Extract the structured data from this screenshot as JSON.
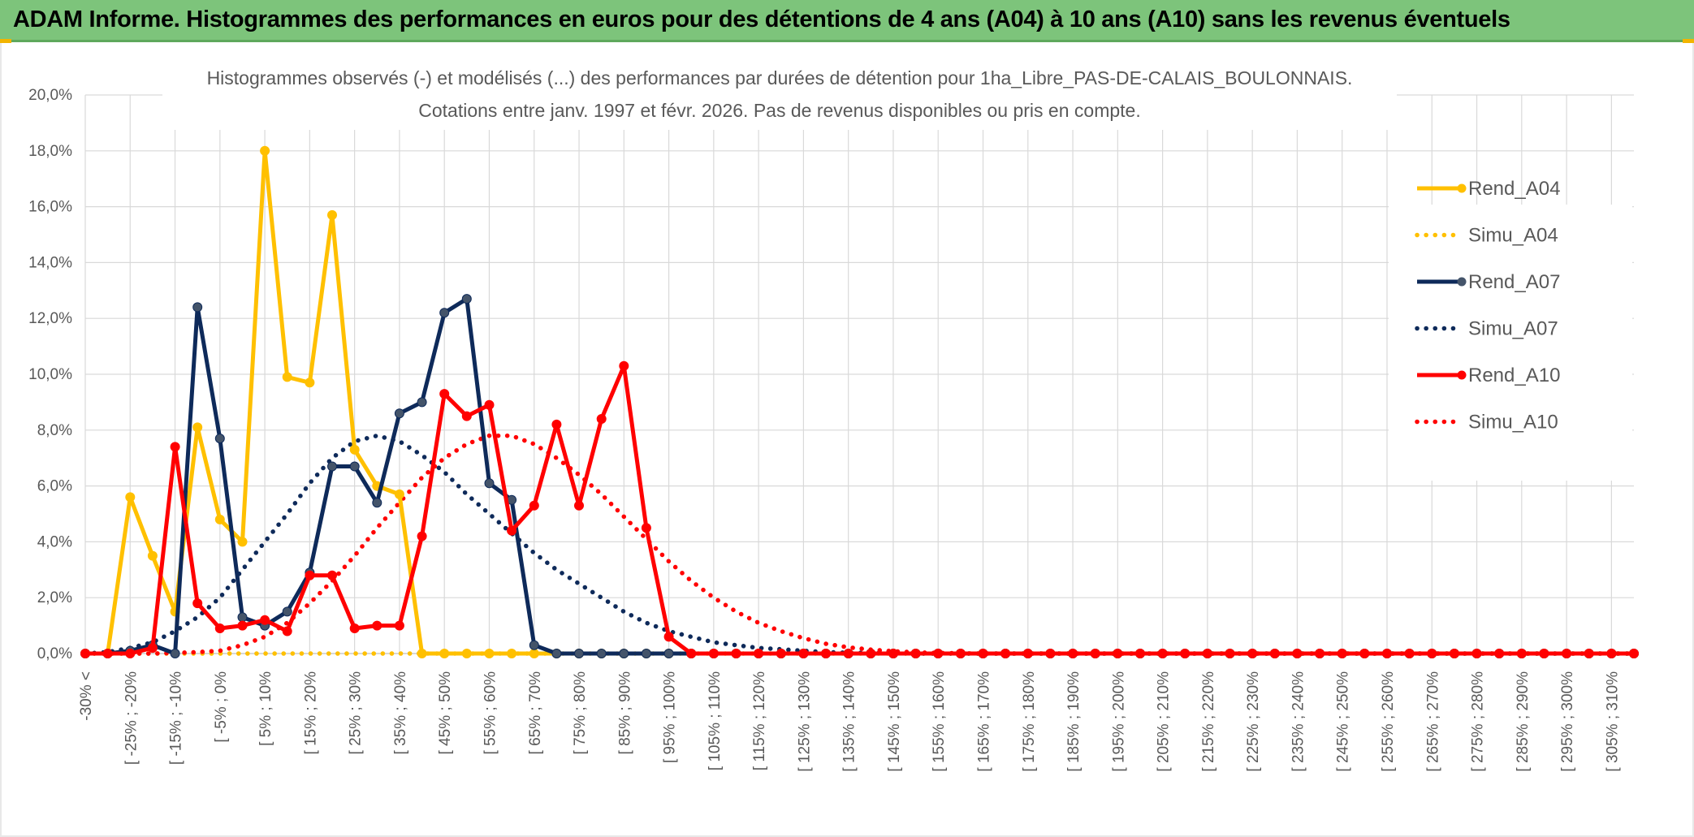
{
  "banner": {
    "title": "ADAM Informe. Histogrammes des performances en euros pour des détentions de 4 ans (A04) à 10 ans (A10) sans les revenus éventuels"
  },
  "colors": {
    "banner_bg": "#7dc47b",
    "accent": "#f2b400",
    "a04": "#ffc000",
    "a07": "#0e2a5a",
    "a10": "#ff0000",
    "grid": "#d9d9d9"
  },
  "chart_data": {
    "type": "line",
    "title": "Histogrammes observés (-) et modélisés (...) des performances par durées de détention pour 1ha_Libre_PAS-DE-CALAIS_BOULONNAIS.",
    "subtitle": "Cotations entre janv. 1997 et févr. 2026. Pas de revenus disponibles ou pris en compte.",
    "xlabel": "",
    "ylabel": "",
    "ylim": [
      0,
      20
    ],
    "yticks": [
      "0,0%",
      "2,0%",
      "4,0%",
      "6,0%",
      "8,0%",
      "10,0%",
      "12,0%",
      "14,0%",
      "16,0%",
      "18,0%",
      "20,0%"
    ],
    "xticks": [
      "-30% <",
      "[ -25% ; -20%",
      "[ -15% ; -10%",
      "[ -5% ; 0%",
      "[ 5% ; 10%",
      "[ 15% ; 20%",
      "[ 25% ; 30%",
      "[ 35% ; 40%",
      "[ 45% ; 50%",
      "[ 55% ; 60%",
      "[ 65% ; 70%",
      "[ 75% ; 80%",
      "[ 85% ; 90%",
      "[ 95% ; 100%",
      "[ 105% ; 110%",
      "[ 115% ; 120%",
      "[ 125% ; 130%",
      "[ 135% ; 140%",
      "[ 145% ; 150%",
      "[ 155% ; 160%",
      "[ 165% ; 170%",
      "[ 175% ; 180%",
      "[ 185% ; 190%",
      "[ 195% ; 200%",
      "[ 205% ; 210%",
      "[ 215% ; 220%",
      "[ 225% ; 230%",
      "[ 235% ; 240%",
      "[ 245% ; 250%",
      "[ 255% ; 260%",
      "[ 265% ; 270%",
      "[ 275% ; 280%",
      "[ 285% ; 290%",
      "[ 295% ; 300%",
      "[ 305% ; 310%"
    ],
    "legend_position": "right",
    "grid": true,
    "series": [
      {
        "name": "Rend_A04",
        "style": "solid",
        "color": "#ffc000",
        "values": [
          0,
          0,
          5.6,
          3.5,
          1.5,
          8.1,
          4.8,
          4.0,
          18.0,
          9.9,
          9.7,
          15.7,
          7.3,
          6.0,
          5.7,
          0,
          0,
          0,
          0,
          0,
          0
        ]
      },
      {
        "name": "Simu_A04",
        "style": "dotted",
        "color": "#ffc000",
        "values": [
          0,
          0,
          0,
          0,
          0,
          0,
          0,
          0,
          0,
          0,
          0,
          0,
          0,
          0,
          0,
          0,
          0,
          0,
          0,
          0,
          0
        ]
      },
      {
        "name": "Rend_A07",
        "style": "solid",
        "color": "#0e2a5a",
        "values": [
          0,
          0,
          0.1,
          0.3,
          0,
          12.4,
          7.7,
          1.3,
          1.0,
          1.5,
          2.9,
          6.7,
          6.7,
          5.4,
          8.6,
          9.0,
          12.2,
          12.7,
          6.1,
          5.5,
          0.3,
          0,
          0,
          0,
          0,
          0,
          0,
          0,
          0,
          0,
          0
        ]
      },
      {
        "name": "Simu_A07",
        "style": "dotted",
        "color": "#0e2a5a",
        "values": [
          0,
          0.05,
          0.2,
          0.4,
          0.8,
          1.3,
          2.0,
          3.0,
          4.0,
          5.0,
          6.1,
          7.0,
          7.6,
          7.8,
          7.6,
          7.1,
          6.5,
          5.7,
          5.0,
          4.3,
          3.6,
          3.0,
          2.5,
          2.0,
          1.5,
          1.1,
          0.8,
          0.6,
          0.4,
          0.3,
          0.2,
          0.15,
          0.1,
          0.05,
          0.03,
          0.02,
          0.01,
          0,
          0,
          0
        ]
      },
      {
        "name": "Rend_A10",
        "style": "solid",
        "color": "#ff0000",
        "values": [
          0,
          0,
          0,
          0.2,
          7.4,
          1.8,
          0.9,
          1.0,
          1.2,
          0.8,
          2.8,
          2.8,
          0.9,
          1.0,
          1.0,
          4.2,
          9.3,
          8.5,
          8.9,
          4.4,
          5.3,
          8.2,
          5.3,
          8.4,
          10.3,
          4.5,
          0.6,
          0,
          0,
          0,
          0,
          0,
          0,
          0,
          0,
          0,
          0,
          0,
          0,
          0,
          0,
          0,
          0,
          0,
          0,
          0,
          0,
          0,
          0,
          0,
          0,
          0,
          0,
          0,
          0,
          0,
          0,
          0,
          0,
          0,
          0,
          0,
          0,
          0,
          0,
          0,
          0,
          0,
          0,
          0
        ]
      },
      {
        "name": "Simu_A10",
        "style": "dotted",
        "color": "#ff0000",
        "values": [
          0,
          0,
          0,
          0,
          0.02,
          0.05,
          0.1,
          0.3,
          0.6,
          1.1,
          1.8,
          2.6,
          3.5,
          4.5,
          5.4,
          6.3,
          7.0,
          7.5,
          7.8,
          7.8,
          7.5,
          7.0,
          6.4,
          5.7,
          4.9,
          4.1,
          3.3,
          2.6,
          2.0,
          1.5,
          1.1,
          0.8,
          0.55,
          0.35,
          0.22,
          0.14,
          0.08,
          0.04,
          0.02,
          0.01,
          0,
          0,
          0,
          0,
          0,
          0,
          0,
          0,
          0,
          0,
          0,
          0,
          0,
          0,
          0,
          0,
          0,
          0,
          0,
          0,
          0,
          0,
          0,
          0,
          0,
          0,
          0,
          0,
          0,
          0
        ]
      }
    ]
  }
}
